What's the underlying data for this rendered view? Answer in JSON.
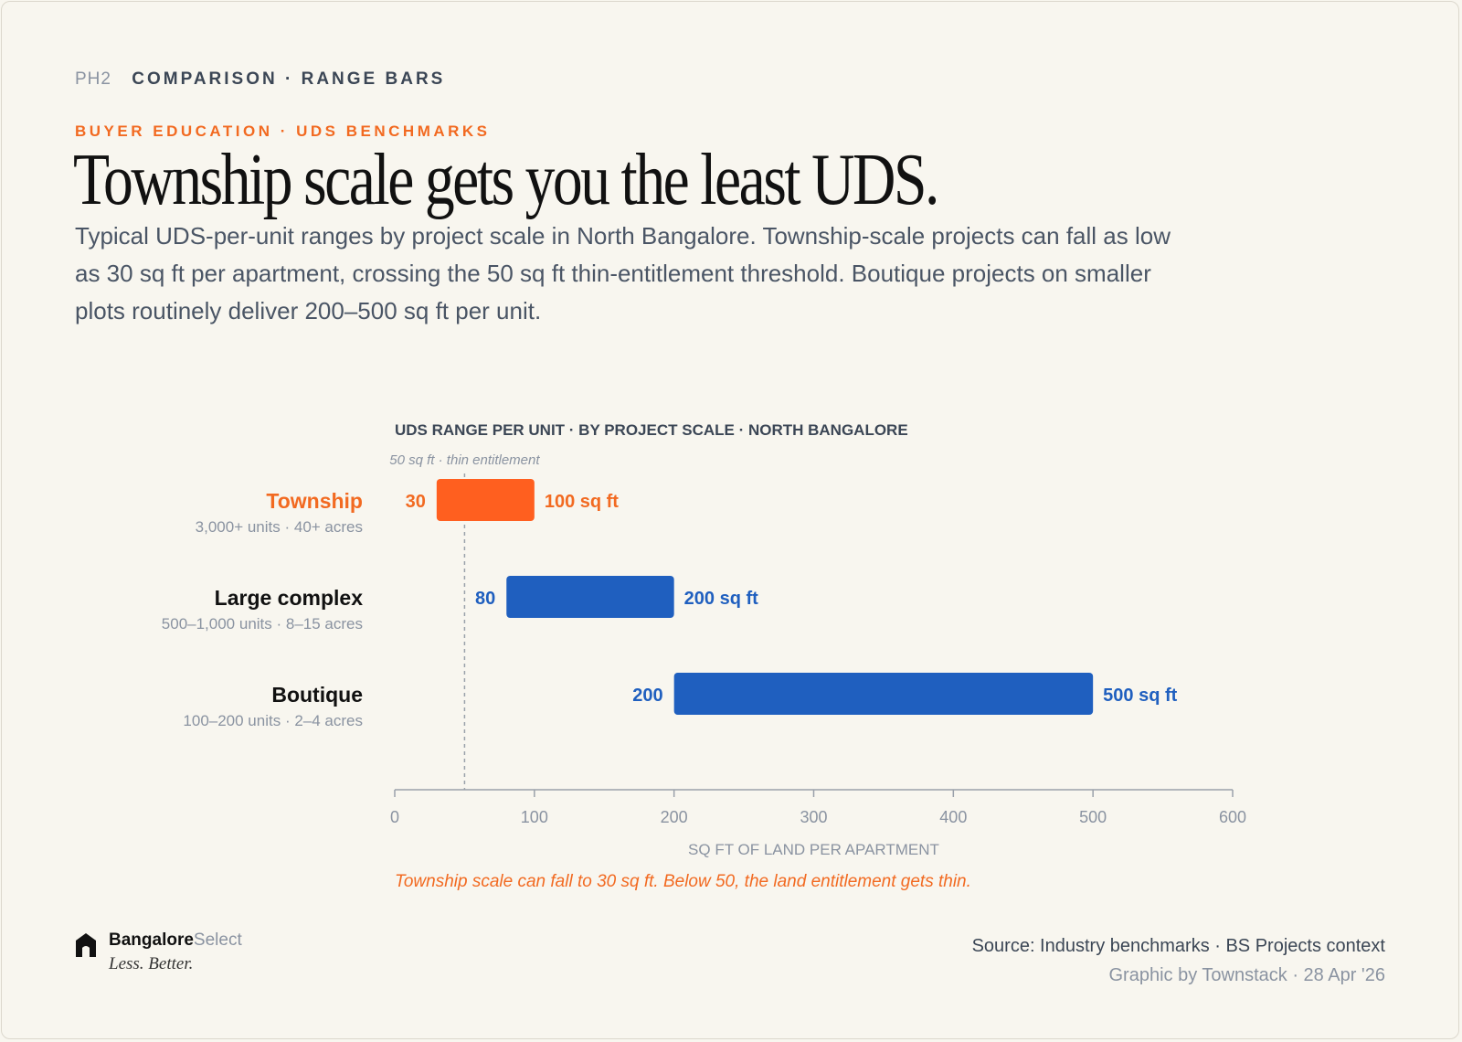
{
  "header": {
    "code": "PH2",
    "label": "COMPARISON · RANGE BARS",
    "eyebrow": "BUYER EDUCATION · UDS BENCHMARKS",
    "title": "Township scale gets you the least UDS.",
    "lede": "Typical UDS-per-unit ranges by project scale in North Bangalore. Township-scale projects can fall as low as 30 sq ft per apartment, crossing the 50 sq ft thin-entitlement threshold. Boutique projects on smaller plots routinely deliver 200–500 sq ft per unit."
  },
  "colors": {
    "highlight": "#ff5f1f",
    "highlight_text": "#f26a21",
    "primary": "#1f5fbf",
    "axis": "#9aa1aa",
    "muted": "#8a93a1"
  },
  "chart_data": {
    "type": "range-bar",
    "title": "UDS RANGE PER UNIT · BY PROJECT SCALE · NORTH BANGALORE",
    "xlabel": "SQ FT OF LAND PER APARTMENT",
    "xlim": [
      0,
      600
    ],
    "xticks": [
      0,
      100,
      200,
      300,
      400,
      500,
      600
    ],
    "reference_line": {
      "value": 50,
      "label": "50 sq ft · thin entitlement"
    },
    "series": [
      {
        "category": "Township",
        "subtitle": "3,000+ units · 40+ acres",
        "min": 30,
        "max": 100,
        "min_label": "30",
        "max_label": "100 sq ft",
        "highlight": true
      },
      {
        "category": "Large complex",
        "subtitle": "500–1,000 units · 8–15 acres",
        "min": 80,
        "max": 200,
        "min_label": "80",
        "max_label": "200 sq ft",
        "highlight": false
      },
      {
        "category": "Boutique",
        "subtitle": "100–200 units · 2–4 acres",
        "min": 200,
        "max": 500,
        "min_label": "200",
        "max_label": "500 sq ft",
        "highlight": false
      }
    ],
    "annotation": "Township scale can fall to 30 sq ft. Below 50, the land entitlement gets thin.",
    "grid": false
  },
  "footer": {
    "brand_bold": "Bangalore",
    "brand_light": "Select",
    "tagline": "Less. Better.",
    "icon": "house-icon",
    "source": "Source: Industry benchmarks · BS Projects context",
    "credit": "Graphic by Townstack · 28 Apr '26"
  }
}
